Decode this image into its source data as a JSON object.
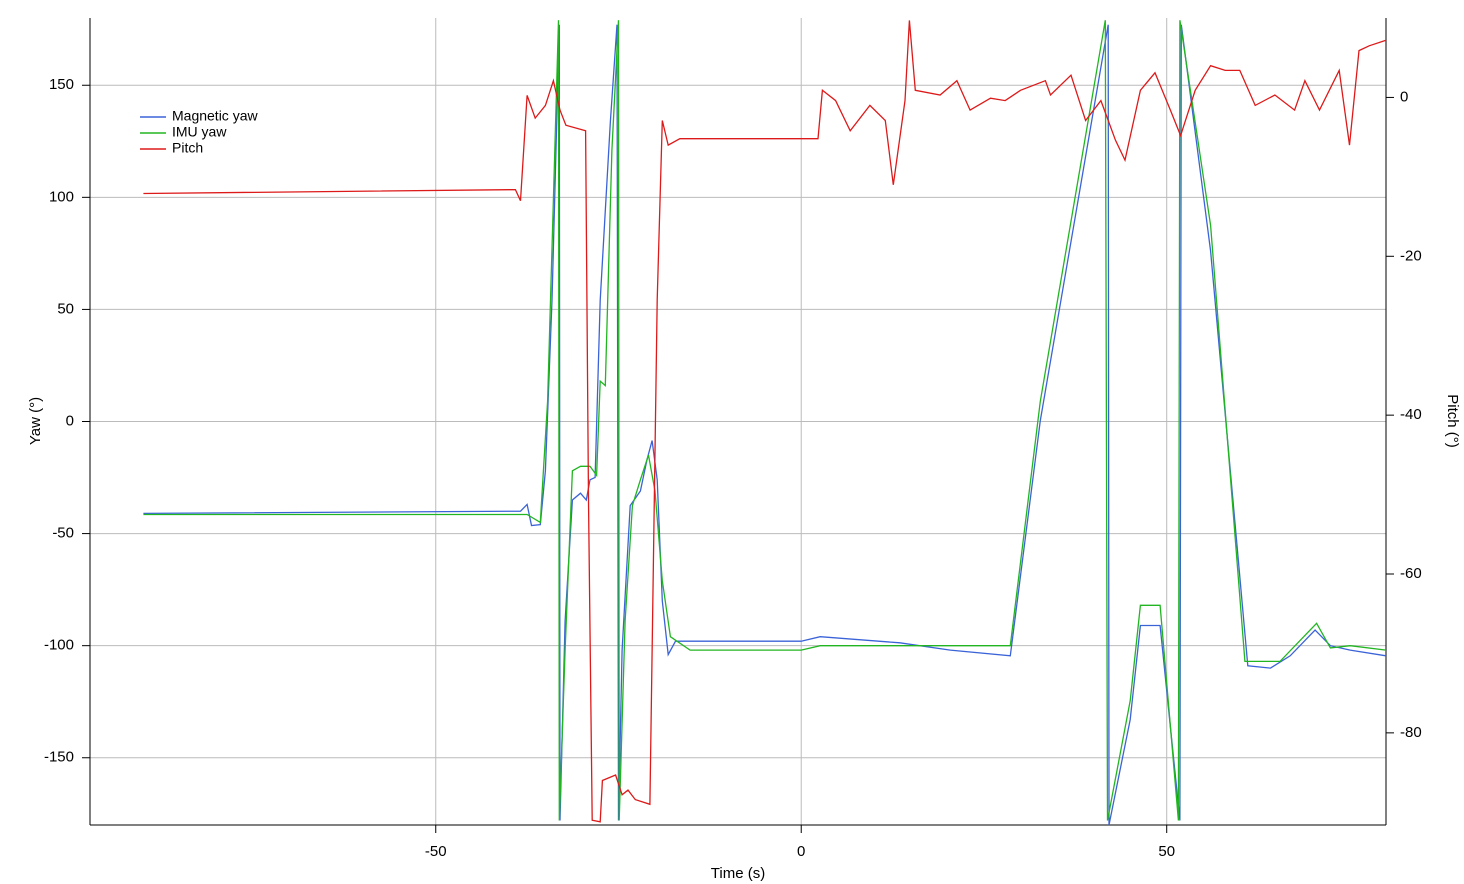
{
  "chart_data": {
    "type": "line",
    "xlabel": "Time (s)",
    "ylabel": "Yaw (°)",
    "y2label": "Pitch (°)",
    "xlim": [
      -97.3,
      80
    ],
    "ylim": [
      -180,
      180
    ],
    "y2lim": [
      -91.6,
      10
    ],
    "xticks": [
      -50,
      0,
      50
    ],
    "yticks": [
      -150,
      -100,
      -50,
      0,
      50,
      100,
      150
    ],
    "y2ticks": [
      -80,
      -60,
      -40,
      -20,
      0
    ],
    "grid": true,
    "legend": "upper left",
    "series": [
      {
        "name": "Magnetic yaw",
        "color": "#3b63d8",
        "x": [
          -90,
          -38.4,
          -37.5,
          -36.9,
          -35.7,
          -35,
          -34.1,
          -33.1,
          -33.0,
          -32.3,
          -31.3,
          -30.2,
          -29.4,
          -28.9,
          -28.2,
          -27.5,
          -26.1,
          -25.2,
          -25.0,
          -24.5,
          -23.4,
          -22,
          -21.1,
          -20.4,
          -19.7,
          -19,
          -18.2,
          -17.2,
          -13.8,
          0,
          2.6,
          13.5,
          20.4,
          28.6,
          32.7,
          42,
          42.1,
          45,
          46.4,
          49.1,
          51.8,
          52,
          56,
          61.1,
          64.2,
          66.9,
          70.3,
          72.4,
          75.1,
          80
        ],
        "values": [
          -41,
          -40,
          -37,
          -46.4,
          -46,
          -22,
          54,
          177,
          -178,
          -89,
          -35,
          -32,
          -35,
          -26,
          -25,
          54,
          134,
          177,
          -178,
          -102,
          -37.5,
          -31,
          -17,
          -8.5,
          -26,
          -80,
          -104,
          -98,
          -98,
          -98,
          -96,
          -98.7,
          -102,
          -104.5,
          0.4,
          177,
          -180,
          -133,
          -91,
          -91,
          -178,
          177,
          76,
          -109,
          -110,
          -104.5,
          -93,
          -100,
          -102,
          -104.5
        ]
      },
      {
        "name": "IMU yaw",
        "color": "#22b522",
        "x": [
          -90,
          -37.5,
          -35.7,
          -34.7,
          -33.9,
          -33.2,
          -33.1,
          -32.3,
          -31.3,
          -30.2,
          -28.9,
          -28,
          -27.5,
          -26.8,
          -25.9,
          -25,
          -24.9,
          -24.1,
          -23.1,
          -22,
          -20.9,
          -20,
          -19,
          -17.9,
          -15.2,
          0,
          2.6,
          6.7,
          28.6,
          32.7,
          41.6,
          41.9,
          45,
          46.4,
          49.1,
          51.6,
          51.8,
          56,
          60.7,
          65.5,
          70.5,
          72.4,
          75.1,
          80
        ],
        "values": [
          -41.5,
          -41.5,
          -45,
          9,
          99,
          179,
          -178,
          -102,
          -22,
          -20,
          -20,
          -24,
          18,
          16,
          121,
          179,
          -178,
          -89,
          -37.5,
          -26,
          -15,
          -31,
          -71,
          -96,
          -102,
          -102,
          -100,
          -100,
          -100,
          9,
          179,
          -178,
          -124.6,
          -82,
          -82,
          -178,
          179,
          87.5,
          -107,
          -107,
          -90,
          -101,
          -100,
          -102
        ]
      },
      {
        "name": "Pitch",
        "color": "#dd1a1a",
        "axis": "y2",
        "x": [
          -90,
          -39.1,
          -38.4,
          -37.5,
          -36.4,
          -35,
          -33.9,
          -33,
          -32.2,
          -29.5,
          -29.1,
          -28.6,
          -27.5,
          -27.2,
          -25.4,
          -24.5,
          -23.7,
          -22.7,
          -20.7,
          -19.7,
          -19,
          -18.2,
          -16.6,
          0,
          2.3,
          2.9,
          4.7,
          6.7,
          9.4,
          11.5,
          12.6,
          14.2,
          14.8,
          15.6,
          19,
          21.3,
          23.1,
          25.9,
          27.9,
          30,
          33.4,
          34.1,
          36.9,
          38.9,
          41,
          43,
          44.3,
          46.4,
          48.4,
          50.5,
          51.9,
          53.9,
          56,
          58,
          60,
          62.1,
          64.8,
          67.5,
          68.9,
          70.9,
          73.6,
          75,
          76.3,
          77.7,
          80
        ],
        "values": [
          -12.1,
          -11.6,
          -13,
          0.25,
          -2.6,
          -1,
          2.1,
          -1.6,
          -3.5,
          -4.2,
          -50.7,
          -91,
          -91.2,
          -86,
          -85.3,
          -87.8,
          -87.2,
          -88.4,
          -89,
          -25.5,
          -2.9,
          -6,
          -5.2,
          -5.2,
          -5.2,
          0.9,
          -0.4,
          -4.2,
          -1,
          -2.9,
          -11,
          -0.4,
          9.7,
          0.9,
          0.3,
          2.1,
          -1.6,
          -0.1,
          -0.4,
          0.9,
          2.1,
          0.3,
          2.8,
          -2.9,
          -0.4,
          -5.4,
          -7.9,
          0.9,
          3.1,
          -1.6,
          -4.8,
          0.9,
          4,
          3.4,
          3.4,
          -1,
          0.3,
          -1.6,
          2.1,
          -1.6,
          3.4,
          -6,
          5.9,
          6.5,
          7.2
        ]
      }
    ]
  }
}
